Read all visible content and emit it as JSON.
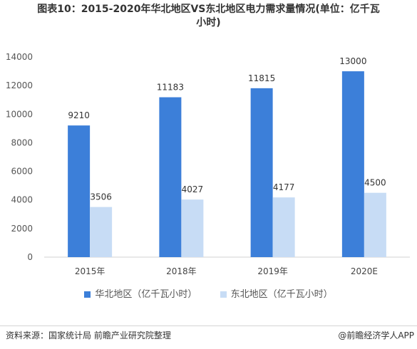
{
  "title_line1": "图表10：2015-2020年华北地区VS东北地区电力需求量情况(单位：亿千瓦",
  "title_line2": "小时)",
  "source": "资料来源：国家统计局 前瞻产业研究院整理",
  "credit": "@前瞻经济学人APP",
  "colors": {
    "north_china": "#3c7fd9",
    "northeast": "#c7dcf5"
  },
  "chart_data": {
    "type": "bar",
    "title": "图表10：2015-2020年华北地区VS东北地区电力需求量情况(单位：亿千瓦小时)",
    "categories": [
      "2015年",
      "2018年",
      "2019年",
      "2020E"
    ],
    "series": [
      {
        "name": "华北地区（亿千瓦小时）",
        "values": [
          9210,
          11183,
          11815,
          13000
        ]
      },
      {
        "name": "东北地区（亿千瓦小时）",
        "values": [
          3506,
          4027,
          4177,
          4500
        ]
      }
    ],
    "yticks": [
      "0",
      "2000",
      "4000",
      "6000",
      "8000",
      "10000",
      "12000",
      "14000"
    ],
    "ylim": [
      0,
      14000
    ],
    "grid": false,
    "legend": "bottom-center"
  }
}
